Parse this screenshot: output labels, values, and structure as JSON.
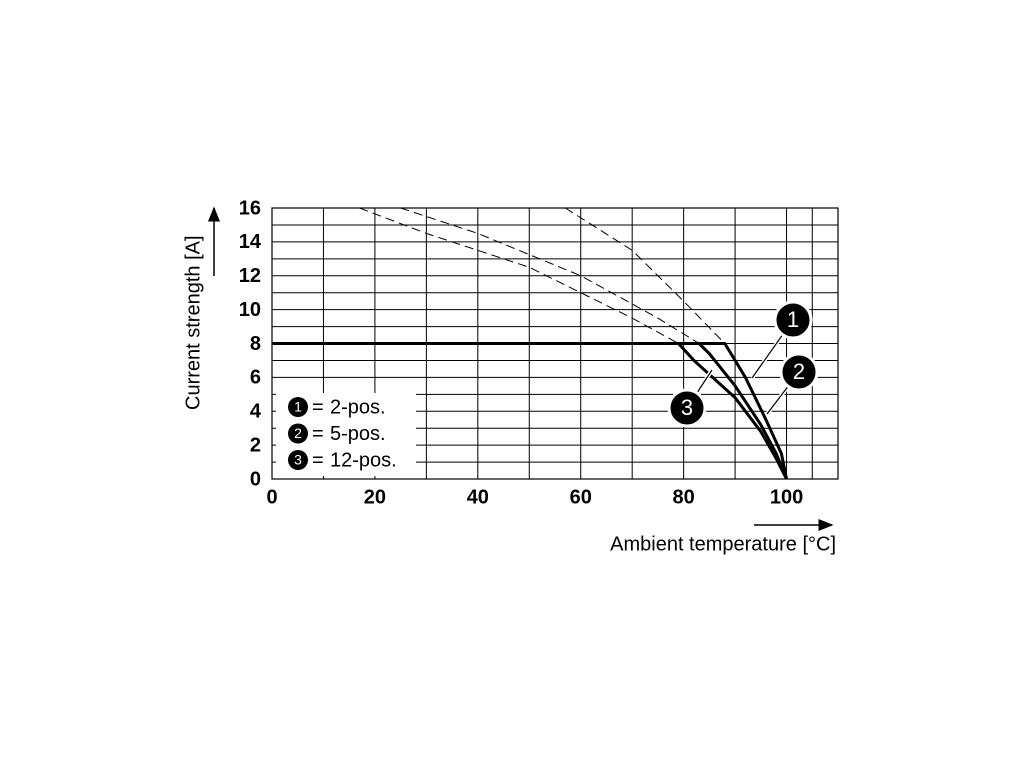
{
  "chart_data": {
    "type": "line",
    "x_label": "Ambient temperature [°C]",
    "y_label": "Current strength [A]",
    "xlim": [
      0,
      110
    ],
    "ylim": [
      0,
      16
    ],
    "xticks": [
      0,
      20,
      40,
      60,
      80,
      100
    ],
    "yticks": [
      0,
      2,
      4,
      6,
      8,
      10,
      12,
      14,
      16
    ],
    "grid": true,
    "legend_position": "lower left",
    "legend_separator": "=",
    "series": [
      {
        "marker": "1",
        "name": "2-pos.",
        "color": "#000000",
        "x": [
          0,
          88,
          92,
          96,
          99,
          100
        ],
        "values": [
          8,
          8,
          6,
          3.5,
          1.5,
          0
        ],
        "dashed_x": [
          57,
          70,
          80,
          88
        ],
        "dashed_values": [
          16,
          13.5,
          10.5,
          8
        ]
      },
      {
        "marker": "2",
        "name": "5-pos.",
        "color": "#000000",
        "x": [
          0,
          83,
          85,
          90,
          95,
          98,
          100
        ],
        "values": [
          8,
          8,
          7.4,
          5.5,
          3.2,
          1.5,
          0
        ],
        "dashed_x": [
          25,
          40,
          60,
          75,
          83
        ],
        "dashed_values": [
          16,
          14.5,
          12,
          9.5,
          8
        ]
      },
      {
        "marker": "3",
        "name": "12-pos.",
        "color": "#000000",
        "x": [
          0,
          79,
          82,
          90,
          95,
          98,
          100
        ],
        "values": [
          8,
          8,
          7,
          4.8,
          2.8,
          1.2,
          0
        ],
        "dashed_x": [
          17,
          30,
          50,
          70,
          79
        ],
        "dashed_values": [
          16,
          14.5,
          12.5,
          9.5,
          8
        ]
      }
    ]
  }
}
